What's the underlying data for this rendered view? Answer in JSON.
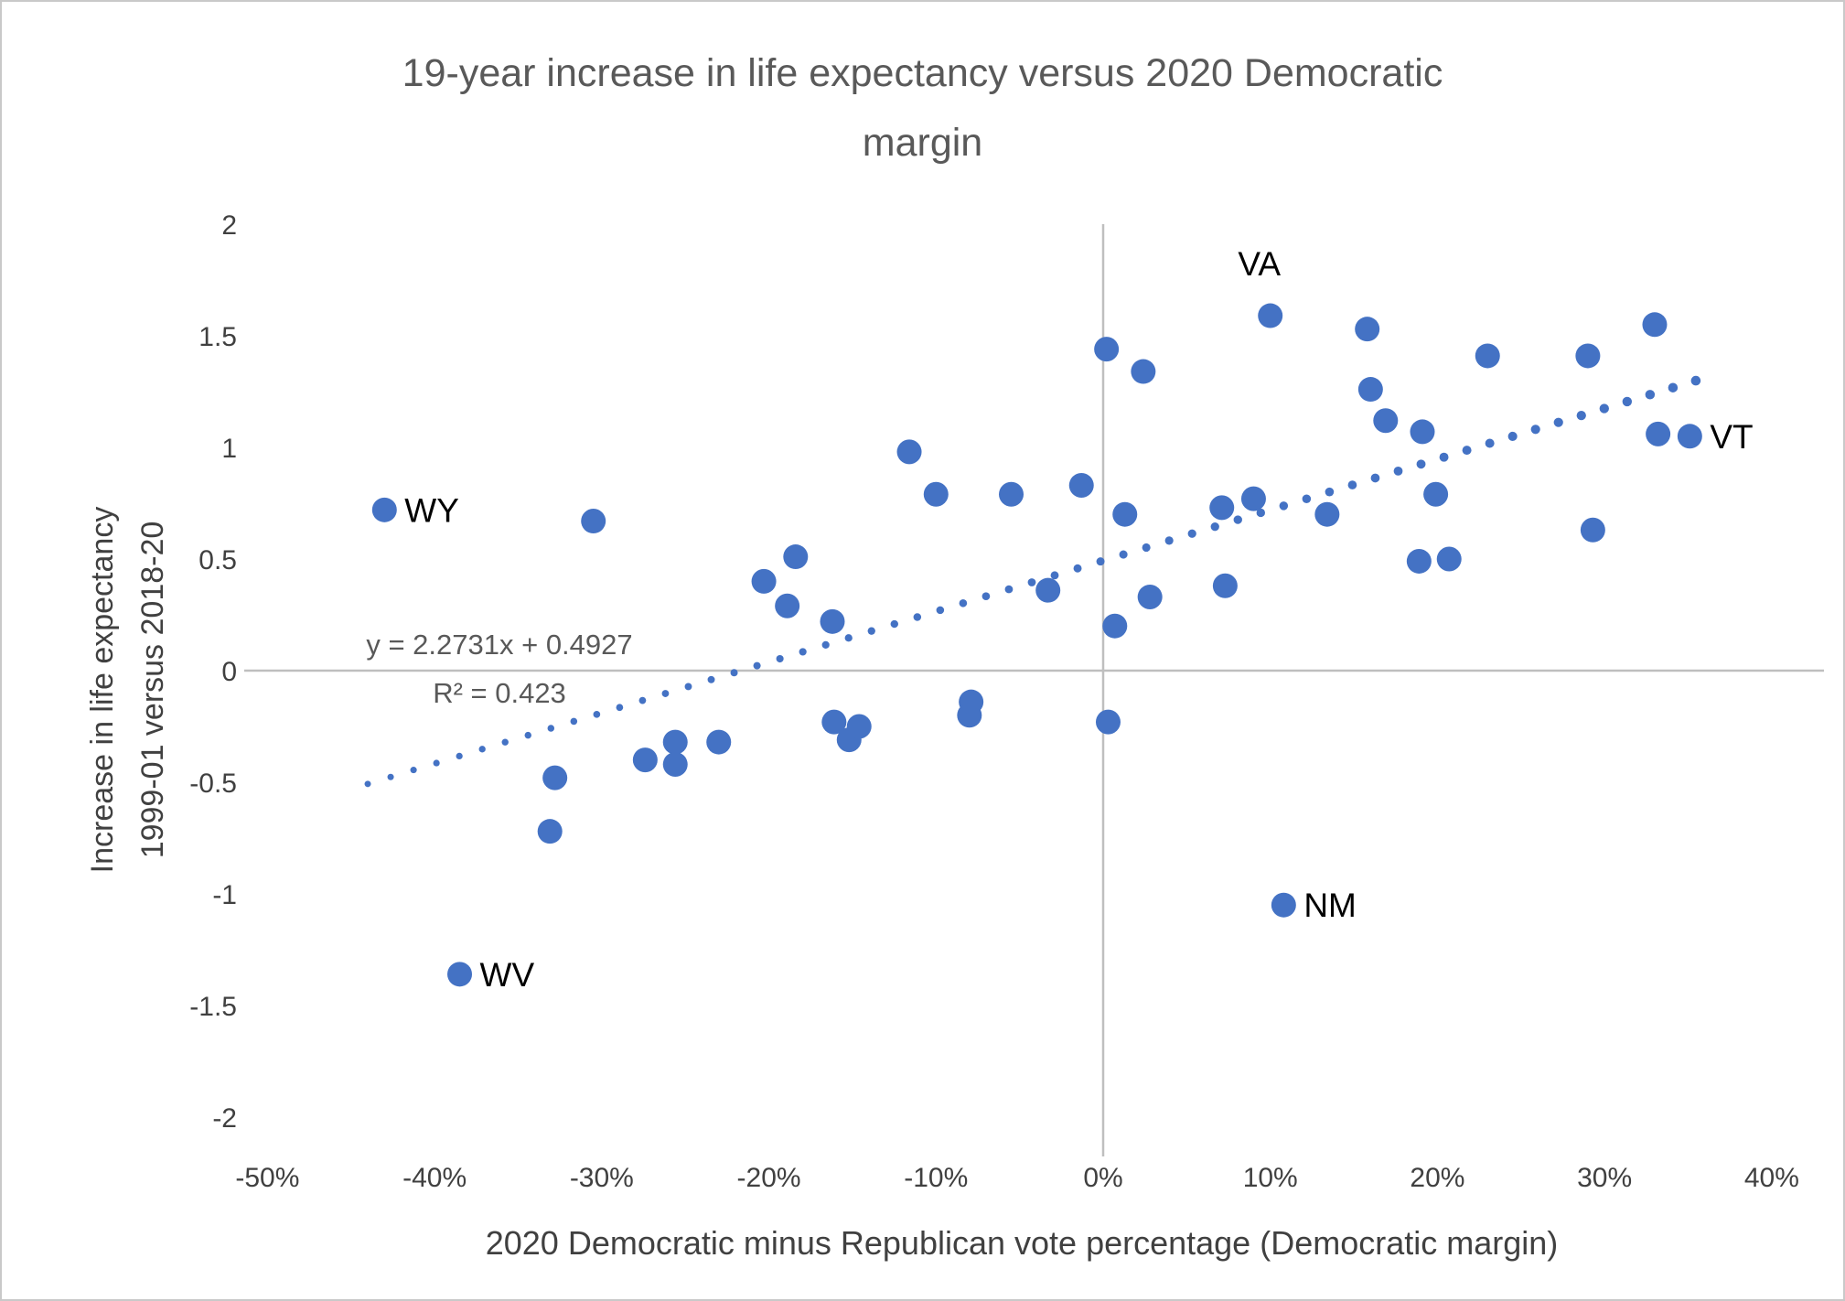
{
  "chart_data": {
    "type": "scatter",
    "title": "19-year increase in life expectancy versus 2020 Democratic margin",
    "title_line1": "19-year increase in life expectancy versus 2020 Democratic",
    "title_line2": "margin",
    "xlabel": "2020 Democratic minus Republican vote percentage (Democratic margin)",
    "ylabel_line1": "Increase in life expectancy",
    "ylabel_line2": "1999-01 versus 2018-20",
    "xlim": [
      -50,
      40
    ],
    "ylim": [
      -2,
      2
    ],
    "x_unit": "percent",
    "x_tick_labels": [
      "-50%",
      "-40%",
      "-30%",
      "-20%",
      "-10%",
      "0%",
      "10%",
      "20%",
      "30%",
      "40%"
    ],
    "x_tick_values": [
      -50,
      -40,
      -30,
      -20,
      -10,
      0,
      10,
      20,
      30,
      40
    ],
    "y_tick_labels": [
      "2",
      "1.5",
      "1",
      "0.5",
      "0",
      "-0.5",
      "-1",
      "-1.5",
      "-2"
    ],
    "y_tick_values": [
      2,
      1.5,
      1,
      0.5,
      0,
      -0.5,
      -1,
      -1.5,
      -2
    ],
    "grid": "zero-axes-only",
    "legend_position": "none",
    "trendline": {
      "style": "dotted",
      "equation": "y = 2.2731x + 0.4927",
      "r_squared_label": "R² = 0.423",
      "slope": 2.2731,
      "intercept": 0.4927,
      "x_start": -44,
      "x_end": 35.6
    },
    "points": [
      {
        "x": -43.0,
        "y": 0.72,
        "label": "WY",
        "label_pos": "right"
      },
      {
        "x": -38.5,
        "y": -1.36,
        "label": "WV",
        "label_pos": "right"
      },
      {
        "x": -33.1,
        "y": -0.72
      },
      {
        "x": -32.8,
        "y": -0.48
      },
      {
        "x": -30.5,
        "y": 0.67
      },
      {
        "x": -27.4,
        "y": -0.4
      },
      {
        "x": -25.6,
        "y": -0.32
      },
      {
        "x": -25.6,
        "y": -0.42
      },
      {
        "x": -23.0,
        "y": -0.32
      },
      {
        "x": -20.3,
        "y": 0.4
      },
      {
        "x": -18.9,
        "y": 0.29
      },
      {
        "x": -18.4,
        "y": 0.51
      },
      {
        "x": -16.2,
        "y": 0.22
      },
      {
        "x": -16.1,
        "y": -0.23
      },
      {
        "x": -15.2,
        "y": -0.31
      },
      {
        "x": -14.6,
        "y": -0.25
      },
      {
        "x": -11.6,
        "y": 0.98
      },
      {
        "x": -10.0,
        "y": 0.79
      },
      {
        "x": -8.0,
        "y": -0.2
      },
      {
        "x": -7.9,
        "y": -0.14
      },
      {
        "x": -5.5,
        "y": 0.79
      },
      {
        "x": -3.3,
        "y": 0.36
      },
      {
        "x": -1.3,
        "y": 0.83
      },
      {
        "x": 0.2,
        "y": 1.44
      },
      {
        "x": 0.3,
        "y": -0.23
      },
      {
        "x": 0.7,
        "y": 0.2
      },
      {
        "x": 1.3,
        "y": 0.7
      },
      {
        "x": 2.4,
        "y": 1.34
      },
      {
        "x": 2.8,
        "y": 0.33
      },
      {
        "x": 7.1,
        "y": 0.73
      },
      {
        "x": 7.3,
        "y": 0.38
      },
      {
        "x": 9.0,
        "y": 0.77
      },
      {
        "x": 10.0,
        "y": 1.59,
        "label": "VA",
        "label_pos": "above"
      },
      {
        "x": 10.8,
        "y": -1.05,
        "label": "NM",
        "label_pos": "right"
      },
      {
        "x": 13.4,
        "y": 0.7
      },
      {
        "x": 15.8,
        "y": 1.53
      },
      {
        "x": 16.0,
        "y": 1.26
      },
      {
        "x": 16.9,
        "y": 1.12
      },
      {
        "x": 18.9,
        "y": 0.49
      },
      {
        "x": 19.1,
        "y": 1.07
      },
      {
        "x": 19.9,
        "y": 0.79
      },
      {
        "x": 20.7,
        "y": 0.5
      },
      {
        "x": 23.0,
        "y": 1.41
      },
      {
        "x": 29.0,
        "y": 1.41
      },
      {
        "x": 29.3,
        "y": 0.63
      },
      {
        "x": 33.0,
        "y": 1.55
      },
      {
        "x": 33.2,
        "y": 1.06
      },
      {
        "x": 35.1,
        "y": 1.05,
        "label": "VT",
        "label_pos": "right"
      }
    ],
    "colors": {
      "point": "#4472C4",
      "trendline": "#4472C4",
      "axis_line": "#BFBFBF",
      "tick_text": "#404040",
      "title_text": "#595959",
      "point_label_text": "#000000",
      "background": "#FFFFFF",
      "border": "#C9C9C9"
    }
  }
}
